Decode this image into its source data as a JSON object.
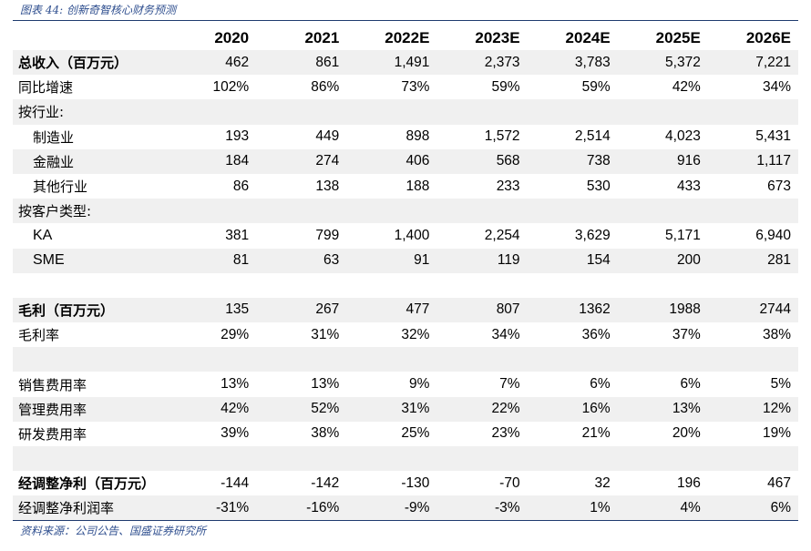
{
  "caption": "图表 44:  创新奇智核心财务预测",
  "source": "资料来源：公司公告、国盛证券研究所",
  "columns": [
    "2020",
    "2021",
    "2022E",
    "2023E",
    "2024E",
    "2025E",
    "2026E"
  ],
  "rows": [
    {
      "label": "总收入（百万元）",
      "style": "bold",
      "shade": true,
      "values": [
        "462",
        "861",
        "1,491",
        "2,373",
        "3,783",
        "5,372",
        "7,221"
      ]
    },
    {
      "label": "同比增速",
      "style": "",
      "shade": false,
      "values": [
        "102%",
        "86%",
        "73%",
        "59%",
        "59%",
        "42%",
        "34%"
      ]
    },
    {
      "label": "按行业:",
      "style": "",
      "shade": true,
      "values": [
        "",
        "",
        "",
        "",
        "",
        "",
        ""
      ]
    },
    {
      "label": "制造业",
      "style": "ind",
      "shade": false,
      "values": [
        "193",
        "449",
        "898",
        "1,572",
        "2,514",
        "4,023",
        "5,431"
      ]
    },
    {
      "label": "金融业",
      "style": "ind",
      "shade": true,
      "values": [
        "184",
        "274",
        "406",
        "568",
        "738",
        "916",
        "1,117"
      ]
    },
    {
      "label": "其他行业",
      "style": "ind",
      "shade": false,
      "values": [
        "86",
        "138",
        "188",
        "233",
        "530",
        "433",
        "673"
      ]
    },
    {
      "label": "按客户类型:",
      "style": "",
      "shade": true,
      "values": [
        "",
        "",
        "",
        "",
        "",
        "",
        ""
      ]
    },
    {
      "label": "KA",
      "style": "ind latin",
      "shade": false,
      "values": [
        "381",
        "799",
        "1,400",
        "2,254",
        "3,629",
        "5,171",
        "6,940"
      ]
    },
    {
      "label": "SME",
      "style": "ind latin",
      "shade": true,
      "values": [
        "81",
        "63",
        "91",
        "119",
        "154",
        "200",
        "281"
      ]
    },
    {
      "label": "",
      "style": "",
      "shade": false,
      "values": [
        "",
        "",
        "",
        "",
        "",
        "",
        ""
      ]
    },
    {
      "label": "毛利（百万元）",
      "style": "bold",
      "shade": true,
      "values": [
        "135",
        "267",
        "477",
        "807",
        "1362",
        "1988",
        "2744"
      ]
    },
    {
      "label": "毛利率",
      "style": "",
      "shade": false,
      "values": [
        "29%",
        "31%",
        "32%",
        "34%",
        "36%",
        "37%",
        "38%"
      ]
    },
    {
      "label": "",
      "style": "",
      "shade": true,
      "values": [
        "",
        "",
        "",
        "",
        "",
        "",
        ""
      ]
    },
    {
      "label": "销售费用率",
      "style": "",
      "shade": false,
      "values": [
        "13%",
        "13%",
        "9%",
        "7%",
        "6%",
        "6%",
        "5%"
      ]
    },
    {
      "label": "管理费用率",
      "style": "",
      "shade": true,
      "values": [
        "42%",
        "52%",
        "31%",
        "22%",
        "16%",
        "13%",
        "12%"
      ]
    },
    {
      "label": "研发费用率",
      "style": "",
      "shade": false,
      "values": [
        "39%",
        "38%",
        "25%",
        "23%",
        "21%",
        "20%",
        "19%"
      ]
    },
    {
      "label": "",
      "style": "",
      "shade": true,
      "values": [
        "",
        "",
        "",
        "",
        "",
        "",
        ""
      ]
    },
    {
      "label": "经调整净利（百万元）",
      "style": "bold",
      "shade": false,
      "values": [
        "-144",
        "-142",
        "-130",
        "-70",
        "32",
        "196",
        "467"
      ]
    },
    {
      "label": "经调整净利润率",
      "style": "",
      "shade": true,
      "values": [
        "-31%",
        "-16%",
        "-9%",
        "-3%",
        "1%",
        "4%",
        "6%"
      ]
    }
  ]
}
